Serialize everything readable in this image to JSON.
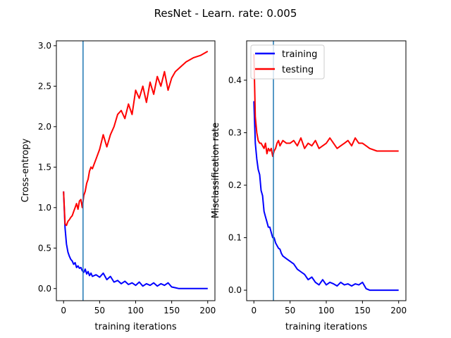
{
  "figure": {
    "title": "ResNet - Learn. rate: 0.005"
  },
  "colors": {
    "training": "#0000ff",
    "testing": "#ff0000",
    "vline": "#1f77b4",
    "axes": "#000000"
  },
  "chart_data": [
    {
      "type": "line",
      "xlabel": "training iterations",
      "ylabel": "Cross-entropy",
      "xlim": [
        -10,
        210
      ],
      "ylim": [
        -0.15,
        3.06
      ],
      "xticks": [
        0,
        50,
        100,
        150,
        200
      ],
      "yticks": [
        0.0,
        0.5,
        1.0,
        1.5,
        2.0,
        2.5,
        3.0
      ],
      "xtick_labels": [
        "0",
        "50",
        "100",
        "150",
        "200"
      ],
      "ytick_labels": [
        "0.0",
        "0.5",
        "1.0",
        "1.5",
        "2.0",
        "2.5",
        "3.0"
      ],
      "vline_x": 27,
      "legend": null,
      "series": [
        {
          "key": "training",
          "x": [
            0,
            2,
            4,
            6,
            8,
            10,
            12,
            14,
            16,
            18,
            20,
            22,
            24,
            26,
            28,
            30,
            32,
            34,
            36,
            38,
            40,
            45,
            50,
            55,
            60,
            65,
            70,
            75,
            80,
            85,
            90,
            95,
            100,
            105,
            110,
            115,
            120,
            125,
            130,
            135,
            140,
            145,
            150,
            155,
            160,
            170,
            180,
            190,
            200
          ],
          "y": [
            1.2,
            0.75,
            0.55,
            0.45,
            0.4,
            0.36,
            0.34,
            0.3,
            0.32,
            0.26,
            0.28,
            0.25,
            0.26,
            0.22,
            0.2,
            0.24,
            0.18,
            0.21,
            0.16,
            0.19,
            0.15,
            0.17,
            0.14,
            0.19,
            0.11,
            0.15,
            0.08,
            0.1,
            0.06,
            0.09,
            0.05,
            0.07,
            0.04,
            0.08,
            0.03,
            0.06,
            0.04,
            0.07,
            0.03,
            0.06,
            0.04,
            0.07,
            0.02,
            0.01,
            0.0,
            0.0,
            0.0,
            0.0,
            0.0
          ]
        },
        {
          "key": "testing",
          "x": [
            0,
            2,
            4,
            6,
            8,
            10,
            12,
            14,
            16,
            18,
            20,
            22,
            24,
            26,
            28,
            30,
            32,
            34,
            36,
            38,
            40,
            45,
            50,
            55,
            60,
            65,
            70,
            75,
            80,
            85,
            90,
            95,
            100,
            105,
            110,
            115,
            120,
            125,
            130,
            135,
            140,
            145,
            150,
            155,
            160,
            170,
            180,
            190,
            200
          ],
          "y": [
            1.2,
            0.8,
            0.78,
            0.83,
            0.85,
            0.88,
            0.9,
            0.95,
            1.0,
            1.05,
            0.98,
            1.08,
            1.1,
            1.0,
            1.15,
            1.2,
            1.3,
            1.35,
            1.45,
            1.5,
            1.48,
            1.6,
            1.72,
            1.9,
            1.75,
            1.9,
            2.0,
            2.15,
            2.2,
            2.1,
            2.28,
            2.15,
            2.45,
            2.35,
            2.5,
            2.3,
            2.55,
            2.4,
            2.62,
            2.5,
            2.68,
            2.45,
            2.6,
            2.68,
            2.72,
            2.8,
            2.85,
            2.88,
            2.93
          ]
        }
      ]
    },
    {
      "type": "line",
      "xlabel": "training iterations",
      "ylabel": "Misclassification rate",
      "xlim": [
        -10,
        210
      ],
      "ylim": [
        -0.02,
        0.475
      ],
      "xticks": [
        0,
        50,
        100,
        150,
        200
      ],
      "yticks": [
        0.0,
        0.1,
        0.2,
        0.3,
        0.4
      ],
      "xtick_labels": [
        "0",
        "50",
        "100",
        "150",
        "200"
      ],
      "ytick_labels": [
        "0.0",
        "0.1",
        "0.2",
        "0.3",
        "0.4"
      ],
      "vline_x": 27,
      "legend": {
        "position": "upper-left",
        "entries": [
          "training",
          "testing"
        ]
      },
      "series": [
        {
          "key": "training",
          "x": [
            0,
            2,
            4,
            6,
            8,
            10,
            12,
            14,
            16,
            18,
            20,
            22,
            24,
            26,
            28,
            30,
            32,
            34,
            36,
            38,
            40,
            45,
            50,
            55,
            60,
            65,
            70,
            75,
            80,
            85,
            90,
            95,
            100,
            105,
            110,
            115,
            120,
            125,
            130,
            135,
            140,
            145,
            150,
            155,
            160,
            170,
            180,
            190,
            200
          ],
          "y": [
            0.36,
            0.28,
            0.25,
            0.23,
            0.22,
            0.19,
            0.18,
            0.15,
            0.14,
            0.13,
            0.12,
            0.12,
            0.11,
            0.1,
            0.1,
            0.09,
            0.085,
            0.08,
            0.078,
            0.07,
            0.065,
            0.06,
            0.055,
            0.05,
            0.04,
            0.035,
            0.03,
            0.02,
            0.025,
            0.015,
            0.01,
            0.02,
            0.01,
            0.015,
            0.012,
            0.008,
            0.015,
            0.01,
            0.012,
            0.008,
            0.012,
            0.01,
            0.015,
            0.003,
            0.0,
            0.0,
            0.0,
            0.0,
            0.0
          ]
        },
        {
          "key": "testing",
          "x": [
            0,
            2,
            4,
            6,
            8,
            10,
            12,
            14,
            16,
            18,
            20,
            22,
            24,
            26,
            28,
            30,
            32,
            34,
            36,
            38,
            40,
            45,
            50,
            55,
            60,
            65,
            70,
            75,
            80,
            85,
            90,
            95,
            100,
            105,
            110,
            115,
            120,
            125,
            130,
            135,
            140,
            145,
            150,
            155,
            160,
            170,
            180,
            190,
            200
          ],
          "y": [
            0.45,
            0.33,
            0.3,
            0.285,
            0.28,
            0.28,
            0.275,
            0.27,
            0.28,
            0.26,
            0.27,
            0.265,
            0.27,
            0.255,
            0.265,
            0.27,
            0.28,
            0.285,
            0.275,
            0.28,
            0.285,
            0.28,
            0.28,
            0.285,
            0.275,
            0.29,
            0.27,
            0.28,
            0.275,
            0.285,
            0.27,
            0.275,
            0.28,
            0.29,
            0.28,
            0.27,
            0.275,
            0.28,
            0.285,
            0.275,
            0.29,
            0.28,
            0.28,
            0.275,
            0.27,
            0.265,
            0.265,
            0.265,
            0.265
          ]
        }
      ]
    }
  ]
}
